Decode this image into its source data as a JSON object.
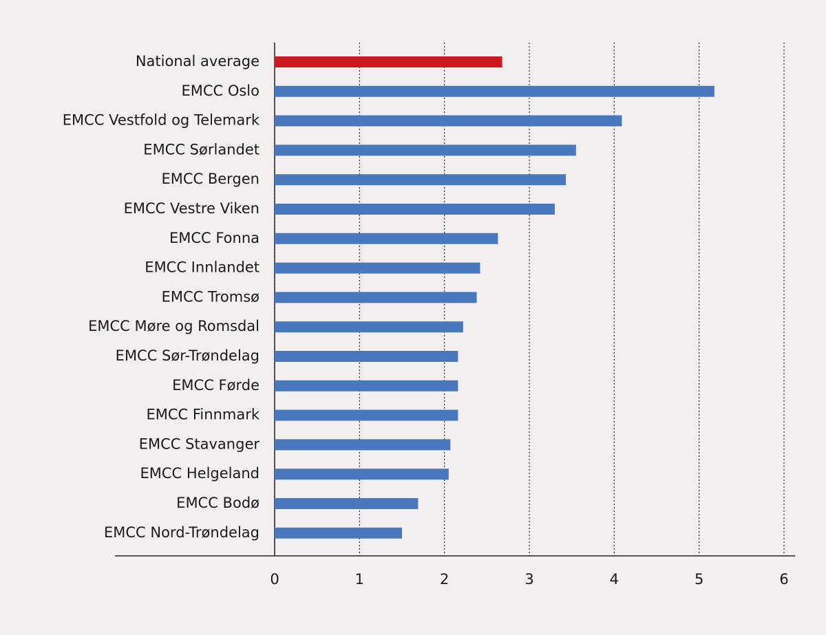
{
  "chart_data": {
    "type": "hbar",
    "categories": [
      "National average",
      "EMCC Oslo",
      "EMCC Vestfold og Telemark",
      "EMCC Sørlandet",
      "EMCC Bergen",
      "EMCC Vestre Viken",
      "EMCC Fonna",
      "EMCC Innlandet",
      "EMCC Tromsø",
      "EMCC Møre og Romsdal",
      "EMCC Sør-Trøndelag",
      "EMCC Førde",
      "EMCC Finnmark",
      "EMCC Stavanger",
      "EMCC Helgeland",
      "EMCC Bodø",
      "EMCC Nord-Trøndelag"
    ],
    "values": [
      2.68,
      5.18,
      4.09,
      3.55,
      3.43,
      3.3,
      2.63,
      2.42,
      2.38,
      2.22,
      2.16,
      2.16,
      2.16,
      2.07,
      2.05,
      1.69,
      1.5
    ],
    "colors": [
      "#d0161f",
      "#4a78be",
      "#4a78be",
      "#4a78be",
      "#4a78be",
      "#4a78be",
      "#4a78be",
      "#4a78be",
      "#4a78be",
      "#4a78be",
      "#4a78be",
      "#4a78be",
      "#4a78be",
      "#4a78be",
      "#4a78be",
      "#4a78be",
      "#4a78be"
    ],
    "xlim": [
      0,
      6
    ],
    "xticks": [
      0,
      1,
      2,
      3,
      4,
      5,
      6
    ],
    "grid": true
  }
}
